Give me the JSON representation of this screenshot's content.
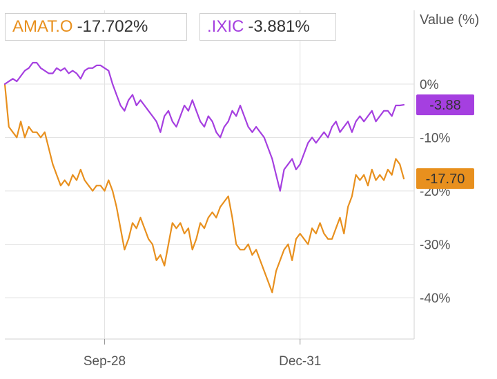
{
  "chart_data": {
    "type": "line",
    "ylabel": "Value (%)",
    "ylim": [
      -45,
      10
    ],
    "x_range": [
      0,
      100
    ],
    "y_ticks": [
      {
        "value": 0,
        "label": "0%"
      },
      {
        "value": -10,
        "label": "-10%"
      },
      {
        "value": -20,
        "label": "-20%"
      },
      {
        "value": -30,
        "label": "-30%"
      },
      {
        "value": -40,
        "label": "-40%"
      }
    ],
    "x_ticks": [
      {
        "x": 25,
        "label": "Sep-28"
      },
      {
        "x": 74,
        "label": "Dec-31"
      }
    ],
    "grid": true,
    "legend": "top-left",
    "series": [
      {
        "name": "AMAT.O",
        "legend_value": "-17.702%",
        "end_label": "-17.70",
        "color": "#e8901e",
        "x": [
          0,
          1,
          2,
          3,
          4,
          5,
          6,
          7,
          8,
          9,
          10,
          11,
          12,
          13,
          14,
          15,
          16,
          17,
          18,
          19,
          20,
          21,
          22,
          23,
          24,
          25,
          26,
          27,
          28,
          29,
          30,
          31,
          32,
          33,
          34,
          35,
          36,
          37,
          38,
          39,
          40,
          41,
          42,
          43,
          44,
          45,
          46,
          47,
          48,
          49,
          50,
          51,
          52,
          53,
          54,
          55,
          56,
          57,
          58,
          59,
          60,
          61,
          62,
          63,
          64,
          65,
          66,
          67,
          68,
          69,
          70,
          71,
          72,
          73,
          74,
          75,
          76,
          77,
          78,
          79,
          80,
          81,
          82,
          83,
          84,
          85,
          86,
          87,
          88,
          89,
          90,
          91,
          92,
          93,
          94,
          95,
          96,
          97,
          98,
          99,
          100
        ],
        "values": [
          0,
          -8,
          -9,
          -10,
          -7,
          -10,
          -8,
          -9,
          -9,
          -10,
          -9,
          -12,
          -15,
          -17,
          -19,
          -18,
          -19,
          -17,
          -18,
          -16,
          -18,
          -19,
          -20,
          -19,
          -19,
          -20,
          -18,
          -20,
          -23,
          -27,
          -31,
          -29,
          -26,
          -27,
          -25,
          -27,
          -29,
          -30,
          -33,
          -32,
          -34,
          -30,
          -26,
          -27,
          -26,
          -28,
          -27,
          -31,
          -29,
          -26,
          -27,
          -25,
          -24,
          -25,
          -23,
          -22,
          -21,
          -25,
          -30,
          -31,
          -31,
          -30,
          -32,
          -31,
          -33,
          -35,
          -37,
          -39,
          -35,
          -33,
          -31,
          -30,
          -33,
          -29,
          -28,
          -29,
          -30,
          -27,
          -28,
          -26,
          -28,
          -29,
          -29,
          -27,
          -25,
          -28,
          -23,
          -21,
          -17,
          -18,
          -17,
          -19,
          -16,
          -18,
          -17,
          -18,
          -16,
          -17,
          -14,
          -15,
          -17.7
        ]
      },
      {
        "name": ".IXIC",
        "legend_value": "-3.881%",
        "end_label": "-3.88",
        "color": "#a53fe0",
        "x": [
          0,
          1,
          2,
          3,
          4,
          5,
          6,
          7,
          8,
          9,
          10,
          11,
          12,
          13,
          14,
          15,
          16,
          17,
          18,
          19,
          20,
          21,
          22,
          23,
          24,
          25,
          26,
          27,
          28,
          29,
          30,
          31,
          32,
          33,
          34,
          35,
          36,
          37,
          38,
          39,
          40,
          41,
          42,
          43,
          44,
          45,
          46,
          47,
          48,
          49,
          50,
          51,
          52,
          53,
          54,
          55,
          56,
          57,
          58,
          59,
          60,
          61,
          62,
          63,
          64,
          65,
          66,
          67,
          68,
          69,
          70,
          71,
          72,
          73,
          74,
          75,
          76,
          77,
          78,
          79,
          80,
          81,
          82,
          83,
          84,
          85,
          86,
          87,
          88,
          89,
          90,
          91,
          92,
          93,
          94,
          95,
          96,
          97,
          98,
          99,
          100
        ],
        "values": [
          0,
          0.5,
          1,
          0.5,
          1.5,
          2.5,
          3,
          4,
          4,
          3,
          2.5,
          2,
          2,
          3,
          2.5,
          3,
          2,
          2.5,
          2,
          1,
          2.5,
          3,
          3,
          3.5,
          3.5,
          3,
          2.5,
          0,
          -2,
          -4,
          -5,
          -3,
          -2,
          -4,
          -3,
          -4,
          -5,
          -6,
          -7,
          -9,
          -6,
          -5,
          -7,
          -8,
          -6,
          -4,
          -5,
          -3,
          -5,
          -7,
          -8,
          -6,
          -7,
          -9,
          -10,
          -8,
          -7,
          -5,
          -6,
          -4,
          -6,
          -8,
          -9,
          -8,
          -9,
          -10,
          -12,
          -14,
          -17,
          -20,
          -16,
          -15,
          -14,
          -16,
          -15,
          -13,
          -11,
          -10,
          -11,
          -10,
          -9,
          -10,
          -8,
          -7,
          -9,
          -8,
          -7,
          -9,
          -7,
          -6,
          -7,
          -6,
          -5,
          -7,
          -6,
          -5,
          -5,
          -6,
          -4,
          -4,
          -3.88
        ]
      }
    ]
  }
}
